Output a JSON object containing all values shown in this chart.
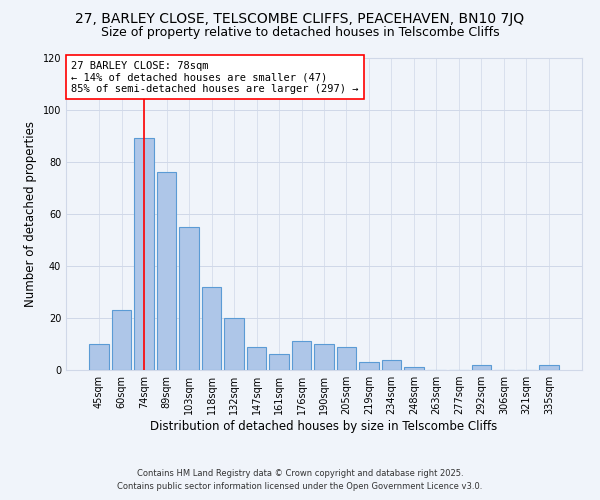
{
  "title": "27, BARLEY CLOSE, TELSCOMBE CLIFFS, PEACEHAVEN, BN10 7JQ",
  "subtitle": "Size of property relative to detached houses in Telscombe Cliffs",
  "xlabel": "Distribution of detached houses by size in Telscombe Cliffs",
  "ylabel": "Number of detached properties",
  "bar_labels": [
    "45sqm",
    "60sqm",
    "74sqm",
    "89sqm",
    "103sqm",
    "118sqm",
    "132sqm",
    "147sqm",
    "161sqm",
    "176sqm",
    "190sqm",
    "205sqm",
    "219sqm",
    "234sqm",
    "248sqm",
    "263sqm",
    "277sqm",
    "292sqm",
    "306sqm",
    "321sqm",
    "335sqm"
  ],
  "bar_values": [
    10,
    23,
    89,
    76,
    55,
    32,
    20,
    9,
    6,
    11,
    10,
    9,
    3,
    4,
    1,
    0,
    0,
    2,
    0,
    0,
    2
  ],
  "bar_color": "#aec6e8",
  "bar_edge_color": "#5b9bd5",
  "annotation_line_x_label": "74sqm",
  "annotation_line_color": "red",
  "annotation_box_text": "27 BARLEY CLOSE: 78sqm\n← 14% of detached houses are smaller (47)\n85% of semi-detached houses are larger (297) →",
  "annotation_box_facecolor": "white",
  "annotation_box_edgecolor": "red",
  "ylim": [
    0,
    120
  ],
  "grid_color": "#d0d8e8",
  "background_color": "#f0f4fa",
  "footer_line1": "Contains HM Land Registry data © Crown copyright and database right 2025.",
  "footer_line2": "Contains public sector information licensed under the Open Government Licence v3.0.",
  "title_fontsize": 10,
  "subtitle_fontsize": 9,
  "axis_label_fontsize": 8.5,
  "tick_fontsize": 7,
  "annotation_fontsize": 7.5,
  "footer_fontsize": 6
}
